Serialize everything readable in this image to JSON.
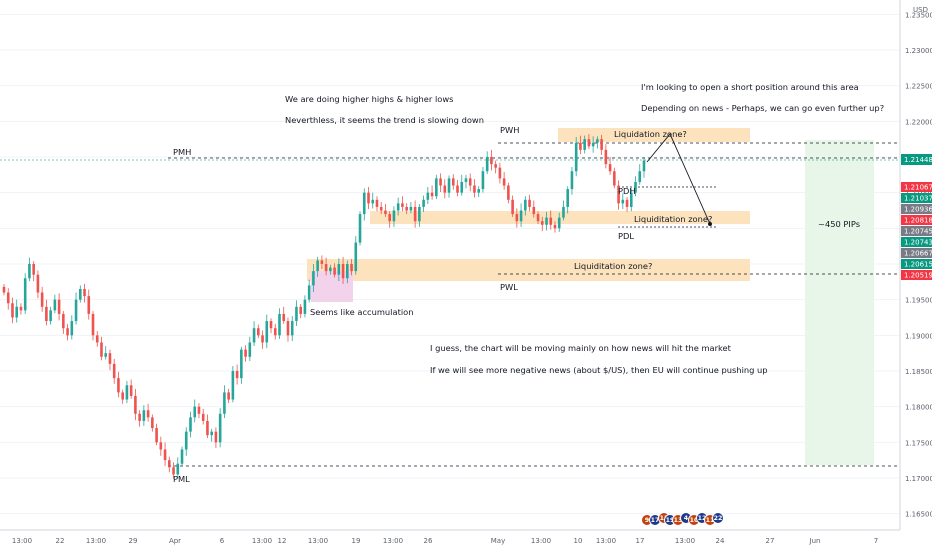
{
  "chart_data": {
    "type": "candlestick",
    "title": "",
    "currency": "USD",
    "x_tick_labels": [
      "13:00",
      "22",
      "13:00",
      "29",
      "Apr",
      "6",
      "13:00",
      "12",
      "13:00",
      "19",
      "13:00",
      "26",
      "May",
      "13:00",
      "10",
      "13:00",
      "17",
      "13:00",
      "24",
      "27",
      "Jun",
      "7"
    ],
    "y_tick_labels": [
      "1.23500",
      "1.23000",
      "1.22500",
      "1.22000",
      "1.21500",
      "1.21000",
      "1.20500",
      "1.20000",
      "1.19500",
      "1.19000",
      "1.18500",
      "1.18000",
      "1.17500",
      "1.17000",
      "1.16500"
    ],
    "ylim": [
      1.164,
      1.237
    ],
    "current_price": "1.21448",
    "price_tags": [
      {
        "label": "1.21067",
        "color": "#f23645"
      },
      {
        "label": "1.21037",
        "color": "#089981"
      },
      {
        "label": "1.20936",
        "color": "#787b86"
      },
      {
        "label": "1.20818",
        "color": "#f23645"
      },
      {
        "label": "1.20745",
        "color": "#787b86"
      },
      {
        "label": "1.20743",
        "color": "#089981"
      },
      {
        "label": "1.20667",
        "color": "#787b86"
      },
      {
        "label": "1.20615",
        "color": "#089981"
      },
      {
        "label": "1.20519",
        "color": "#f23645"
      }
    ],
    "candles_close": [
      1.196,
      1.1945,
      1.1925,
      1.194,
      1.1935,
      1.198,
      1.2,
      1.1985,
      1.196,
      1.194,
      1.192,
      1.1935,
      1.195,
      1.193,
      1.191,
      1.19,
      1.192,
      1.195,
      1.1965,
      1.1955,
      1.193,
      1.19,
      1.189,
      1.187,
      1.1875,
      1.186,
      1.184,
      1.182,
      1.181,
      1.183,
      1.1815,
      1.179,
      1.178,
      1.1795,
      1.1785,
      1.177,
      1.175,
      1.174,
      1.1725,
      1.1715,
      1.1705,
      1.172,
      1.174,
      1.1765,
      1.1785,
      1.18,
      1.179,
      1.178,
      1.176,
      1.1765,
      1.175,
      1.179,
      1.182,
      1.181,
      1.185,
      1.184,
      1.188,
      1.187,
      1.189,
      1.191,
      1.19,
      1.189,
      1.192,
      1.191,
      1.19,
      1.193,
      1.192,
      1.19,
      1.192,
      1.194,
      1.193,
      1.195,
      1.197,
      1.199,
      1.2005,
      1.2,
      1.199,
      1.1995,
      1.1985,
      1.2,
      1.198,
      1.2,
      1.199,
      1.203,
      1.207,
      1.21,
      1.2085,
      1.209,
      1.208,
      1.2075,
      1.207,
      1.206,
      1.2075,
      1.2085,
      1.208,
      1.2075,
      1.208,
      1.206,
      1.208,
      1.209,
      1.21,
      1.2095,
      1.212,
      1.211,
      1.21,
      1.212,
      1.211,
      1.21,
      1.2115,
      1.212,
      1.211,
      1.21,
      1.2105,
      1.213,
      1.215,
      1.214,
      1.2135,
      1.212,
      1.211,
      1.209,
      1.207,
      1.206,
      1.2075,
      1.209,
      1.208,
      1.207,
      1.206,
      1.2055,
      1.2065,
      1.2055,
      1.205,
      1.2065,
      1.208,
      1.2105,
      1.213,
      1.217,
      1.216,
      1.2175,
      1.2165,
      1.217,
      1.2175,
      1.216,
      1.214,
      1.213,
      1.211,
      1.2085,
      1.209,
      1.208,
      1.21,
      1.2115,
      1.213,
      1.2145
    ],
    "annotations": {
      "note1": "We are doing higher highs & higher lows",
      "note2": "Neverthless, it seems the trend is slowing down",
      "note3": "I'm looking to open a short position around this area",
      "note4": "Depending on news - Perhaps, we can go even further up?",
      "note5": "I guess, the chart will be moving mainly on how news will hit the market",
      "note6": "If we will see more negative news (about $/US), then EU will continue pushing up",
      "accumulation": "Seems like accumulation",
      "zone_top": "Liquidation zone?",
      "zone_mid": "Liquiditation zone?",
      "zone_low": "Liquiditation zone?",
      "pips": "~450 PIPs"
    },
    "levels": {
      "pmh": "PMH",
      "pml": "PML",
      "pwh": "PWH",
      "pwl": "PWL",
      "pdh": "PDH",
      "pdl": "PDL"
    },
    "badges": [
      "9",
      "17",
      "13",
      "19",
      "13",
      "4",
      "10",
      "12",
      "11",
      "22"
    ],
    "colors": {
      "up": "#26a69a",
      "down": "#ef5350",
      "zone": "#fce3bd",
      "accumulation": "#f3d3ec",
      "target": "#e8f5e9",
      "current": "#089981"
    }
  }
}
